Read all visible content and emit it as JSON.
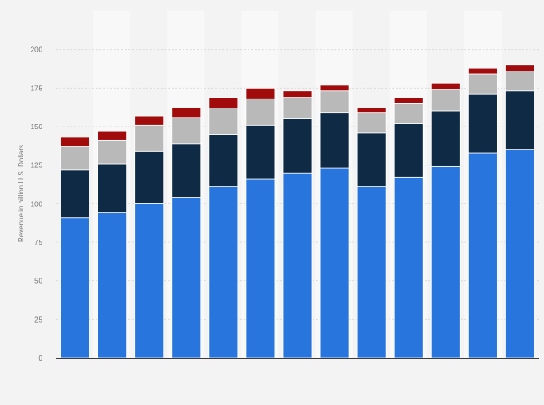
{
  "chart_data": {
    "type": "bar",
    "stacked": true,
    "title": "",
    "xlabel": "",
    "ylabel": "Revenue in billion U.S. Dollars",
    "ylim": [
      0,
      225
    ],
    "yticks": [
      0,
      25,
      50,
      75,
      100,
      125,
      150,
      175,
      200
    ],
    "grid": true,
    "legend": "none",
    "categories": [
      "",
      "",
      "",
      "",
      "",
      "",
      "",
      "",
      "",
      "",
      "",
      "",
      ""
    ],
    "series": [
      {
        "color": "#2876dd",
        "values": [
          91,
          94,
          100,
          104,
          111,
          116,
          120,
          123,
          111,
          117,
          124,
          133,
          135
        ]
      },
      {
        "color": "#0f2a44",
        "values": [
          31,
          32,
          34,
          35,
          34,
          35,
          35,
          36,
          35,
          35,
          36,
          38,
          38
        ]
      },
      {
        "color": "#b9b9b9",
        "values": [
          15,
          15,
          17,
          17,
          17,
          17,
          14,
          14,
          13,
          13,
          14,
          13,
          13
        ]
      },
      {
        "color": "#a10b0b",
        "values": [
          6,
          6,
          6,
          6,
          7,
          7,
          4,
          4,
          3,
          4,
          4,
          4,
          4
        ]
      }
    ]
  }
}
